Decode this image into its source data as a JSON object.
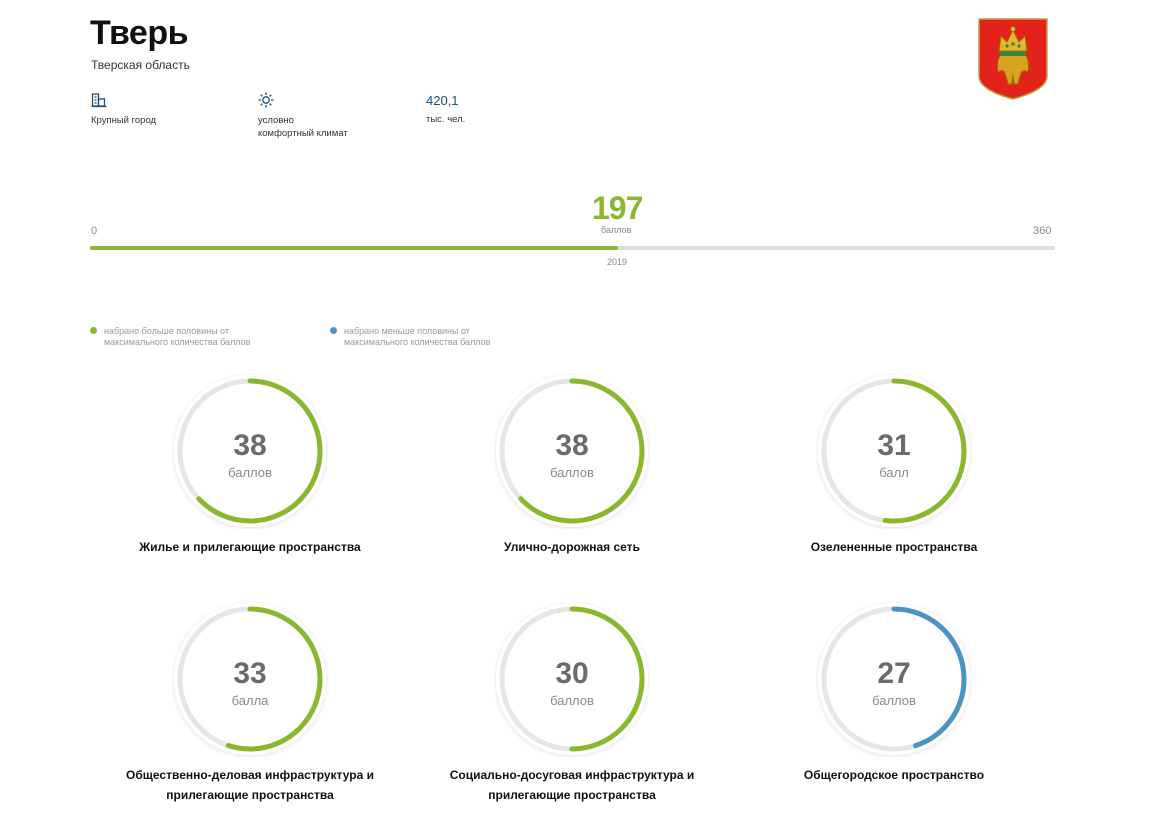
{
  "city": {
    "name": "Тверь",
    "region": "Тверская область"
  },
  "stats": [
    {
      "icon": "city-building-icon",
      "line1": "Крупный город",
      "line2": ""
    },
    {
      "icon": "sun-icon",
      "line1": "условно",
      "line2": "комфортный климат"
    },
    {
      "value": "420,1",
      "line1": "тыс. чел."
    }
  ],
  "coat_of_arms": {
    "icon": "coat-of-arms-icon",
    "field_color": "#e2231a",
    "crown_color": "#d4a020"
  },
  "score": {
    "value": 197,
    "unit": "баллов",
    "min": "0",
    "max": "360",
    "max_value": 360,
    "year": "2019"
  },
  "legend": [
    {
      "color": "#8ab72d",
      "line1": "набрано больше половины от",
      "line2": "максимального количества баллов"
    },
    {
      "color": "#4a93c2",
      "line1": "набрано меньше половины от",
      "line2": "максимального количества баллов"
    }
  ],
  "categories": [
    {
      "value": "38",
      "fraction": 0.63,
      "unit": "баллов",
      "color": "#8ab72d",
      "label_lines": [
        "Жилье и прилегающие пространства"
      ]
    },
    {
      "value": "38",
      "fraction": 0.63,
      "unit": "баллов",
      "color": "#8ab72d",
      "label_lines": [
        "Улично-дорожная сеть"
      ]
    },
    {
      "value": "31",
      "fraction": 0.52,
      "unit": "балл",
      "color": "#8ab72d",
      "label_lines": [
        "Озелененные пространства"
      ]
    },
    {
      "value": "33",
      "fraction": 0.55,
      "unit": "балла",
      "color": "#8ab72d",
      "label_lines": [
        "Общественно-деловая инфраструктура и",
        "прилегающие пространства"
      ]
    },
    {
      "value": "30",
      "fraction": 0.5,
      "unit": "баллов",
      "color": "#8ab72d",
      "label_lines": [
        "Социально-досуговая инфраструктура и",
        "прилегающие пространства"
      ]
    },
    {
      "value": "27",
      "fraction": 0.45,
      "unit": "баллов",
      "color": "#4a93c2",
      "label_lines": [
        "Общегородское пространство"
      ]
    }
  ],
  "colors": {
    "accent_green": "#8ab72d",
    "accent_blue": "#4a93c2",
    "track": "#e6e6e6"
  }
}
